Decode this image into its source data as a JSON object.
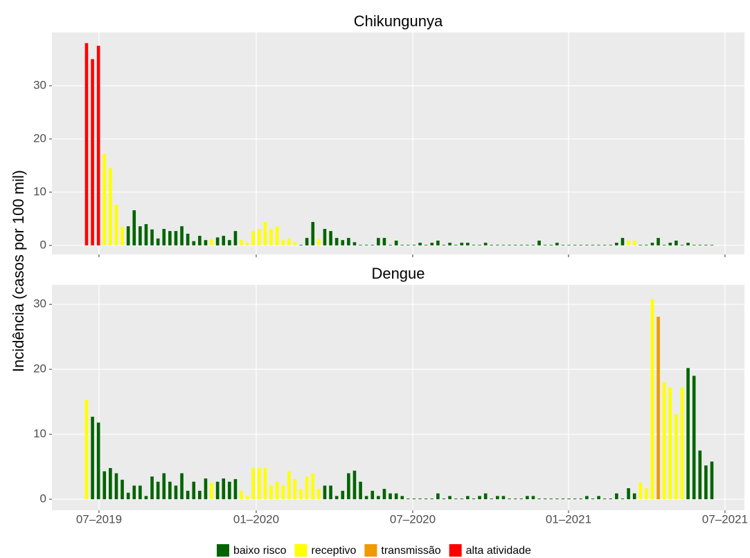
{
  "chart_data": [
    {
      "type": "bar",
      "title": "Chikungunya",
      "ylabel": "Incidência (casos por 100 mil)",
      "categories": [
        null,
        null,
        null,
        null,
        null,
        null,
        null,
        null,
        null,
        null,
        null,
        null,
        null,
        null,
        null,
        null,
        null,
        null,
        null,
        null,
        null,
        null,
        null,
        null,
        null,
        null,
        null,
        null,
        null,
        null,
        null,
        null,
        null,
        null,
        null,
        null,
        null,
        null,
        null,
        null,
        null,
        null,
        null,
        null,
        null,
        null,
        null,
        null,
        null,
        null,
        null,
        null,
        null,
        null,
        null,
        null,
        null,
        null,
        null,
        null,
        null,
        null,
        null,
        null,
        null,
        null,
        null,
        null,
        null,
        null,
        null,
        null,
        null,
        null,
        null,
        null,
        null,
        null,
        null,
        null,
        null,
        null,
        null,
        null,
        null,
        null,
        null,
        null,
        null,
        null,
        null,
        null,
        null,
        null,
        null,
        null,
        null,
        null,
        null,
        null,
        null,
        null,
        null,
        null,
        null,
        null
      ],
      "values": [
        38,
        35,
        37.5,
        17.2,
        14.5,
        7.6,
        3.5,
        3.6,
        6.6,
        3.6,
        4,
        3,
        1.3,
        3.1,
        2.7,
        2.7,
        3.6,
        2.2,
        0.8,
        1.8,
        1,
        1.2,
        1.5,
        1.8,
        1,
        2.7,
        1,
        0.5,
        2.7,
        3.1,
        4.4,
        3.1,
        3.6,
        1,
        1.3,
        0.6,
        0.1,
        1.4,
        4.4,
        1.2,
        3.1,
        2.7,
        1.4,
        1,
        1.4,
        0.6,
        0.1,
        0.1,
        0.1,
        1.4,
        1.4,
        0.1,
        0.9,
        0.1,
        0.1,
        0.1,
        0.5,
        0.1,
        0.5,
        0.9,
        0.1,
        0.5,
        0.1,
        0.5,
        0.5,
        0.1,
        0.1,
        0.5,
        0.1,
        0.1,
        0.1,
        0.1,
        0.1,
        0.1,
        0.1,
        0.1,
        0.9,
        0.1,
        0.1,
        0.5,
        0.1,
        0.1,
        0.1,
        0.1,
        0.1,
        0.1,
        0.1,
        0.1,
        0.1,
        0.5,
        1.4,
        0.9,
        0.9,
        0.1,
        0.1,
        0.5,
        1.4,
        0.1,
        0.5,
        0.9,
        0.1,
        0.5,
        0.1,
        0.1,
        0.1,
        0.1
      ],
      "colors": [
        "#ff0000",
        "#ff0000",
        "#ff0000",
        "#ffff00",
        "#ffff00",
        "#ffff00",
        "#ffff00",
        "#006400",
        "#006400",
        "#006400",
        "#006400",
        "#006400",
        "#006400",
        "#006400",
        "#006400",
        "#006400",
        "#006400",
        "#006400",
        "#006400",
        "#006400",
        "#006400",
        "#ffff00",
        "#006400",
        "#006400",
        "#006400",
        "#006400",
        "#ffff00",
        "#ffff00",
        "#ffff00",
        "#ffff00",
        "#ffff00",
        "#ffff00",
        "#ffff00",
        "#ffff00",
        "#ffff00",
        "#ffff00",
        "#006400",
        "#006400",
        "#006400",
        "#ffff00",
        "#006400",
        "#006400",
        "#006400",
        "#006400",
        "#006400",
        "#006400",
        "#006400",
        "#006400",
        "#006400",
        "#006400",
        "#006400",
        "#006400",
        "#006400",
        "#006400",
        "#006400",
        "#006400",
        "#006400",
        "#006400",
        "#006400",
        "#006400",
        "#006400",
        "#006400",
        "#006400",
        "#006400",
        "#006400",
        "#006400",
        "#006400",
        "#006400",
        "#006400",
        "#006400",
        "#006400",
        "#006400",
        "#006400",
        "#006400",
        "#006400",
        "#006400",
        "#006400",
        "#006400",
        "#006400",
        "#006400",
        "#006400",
        "#006400",
        "#006400",
        "#006400",
        "#006400",
        "#006400",
        "#006400",
        "#006400",
        "#006400",
        "#006400",
        "#006400",
        "#ffff00",
        "#ffff00",
        "#006400",
        "#006400",
        "#006400",
        "#006400",
        "#006400",
        "#006400",
        "#006400",
        "#006400",
        "#006400",
        "#006400",
        "#006400",
        "#006400",
        "#006400"
      ],
      "ylim": [
        -1.7,
        40
      ],
      "yticks": [
        0,
        10,
        20,
        30
      ],
      "xlim": [
        -5.81,
        110.47
      ],
      "grid": true
    },
    {
      "type": "bar",
      "title": "Dengue",
      "categories": [
        null,
        null,
        null,
        null,
        null,
        null,
        null,
        null,
        null,
        null,
        null,
        null,
        null,
        null,
        null,
        null,
        null,
        null,
        null,
        null,
        null,
        null,
        null,
        null,
        null,
        null,
        null,
        null,
        null,
        null,
        null,
        null,
        null,
        null,
        null,
        null,
        null,
        null,
        null,
        null,
        null,
        null,
        null,
        null,
        null,
        null,
        null,
        null,
        null,
        null,
        null,
        null,
        null,
        null,
        null,
        null,
        null,
        null,
        null,
        null,
        null,
        null,
        null,
        null,
        null,
        null,
        null,
        null,
        null,
        null,
        null,
        null,
        null,
        null,
        null,
        null,
        null,
        null,
        null,
        null,
        null,
        null,
        null,
        null,
        null,
        null,
        null,
        null,
        null,
        null,
        null,
        null,
        null,
        null,
        null,
        null,
        null,
        null,
        null,
        null,
        null,
        null,
        null,
        null,
        null,
        null
      ],
      "values": [
        15.3,
        12.7,
        11.8,
        4.3,
        4.8,
        4,
        3,
        1,
        2.1,
        2.1,
        0.5,
        3.5,
        2.7,
        4,
        2.7,
        2.1,
        4,
        1.3,
        2.7,
        1.3,
        3.2,
        2.5,
        2.7,
        3.2,
        2.7,
        3.1,
        1.3,
        0.5,
        4.8,
        4.8,
        4.8,
        2.1,
        2.7,
        2.1,
        4.3,
        3.1,
        1.6,
        3.5,
        4,
        1.6,
        2.1,
        2.1,
        0.5,
        1.3,
        4,
        4.4,
        2.7,
        0.5,
        1.3,
        0.5,
        1.6,
        0.9,
        0.9,
        0.5,
        0.1,
        0.1,
        0.1,
        0.1,
        0.1,
        0.9,
        0.1,
        0.5,
        0.1,
        0.1,
        0.5,
        0.1,
        0.5,
        0.9,
        0.1,
        0.5,
        0.5,
        0.1,
        0.1,
        0.1,
        0.5,
        0.5,
        0.1,
        0.1,
        0.1,
        0.1,
        0.1,
        0.1,
        0.1,
        0.1,
        0.5,
        0.1,
        0.5,
        0.1,
        0.1,
        0.9,
        0.1,
        1.7,
        0.9,
        2.6,
        1.7,
        30.8,
        28.1,
        18,
        17.2,
        13.1,
        17.2,
        20.2,
        19,
        7.5,
        5.2,
        5.8
      ],
      "colors": [
        "#ffff00",
        "#006400",
        "#006400",
        "#006400",
        "#006400",
        "#006400",
        "#006400",
        "#006400",
        "#006400",
        "#006400",
        "#006400",
        "#006400",
        "#006400",
        "#006400",
        "#006400",
        "#006400",
        "#006400",
        "#006400",
        "#006400",
        "#006400",
        "#006400",
        "#ffff00",
        "#006400",
        "#006400",
        "#006400",
        "#006400",
        "#ffff00",
        "#ffff00",
        "#ffff00",
        "#ffff00",
        "#ffff00",
        "#ffff00",
        "#ffff00",
        "#ffff00",
        "#ffff00",
        "#ffff00",
        "#ffff00",
        "#ffff00",
        "#ffff00",
        "#ffff00",
        "#006400",
        "#006400",
        "#006400",
        "#006400",
        "#006400",
        "#006400",
        "#006400",
        "#006400",
        "#006400",
        "#006400",
        "#006400",
        "#006400",
        "#006400",
        "#006400",
        "#006400",
        "#006400",
        "#006400",
        "#006400",
        "#006400",
        "#006400",
        "#006400",
        "#006400",
        "#006400",
        "#006400",
        "#006400",
        "#006400",
        "#006400",
        "#006400",
        "#006400",
        "#006400",
        "#006400",
        "#006400",
        "#006400",
        "#006400",
        "#006400",
        "#006400",
        "#006400",
        "#006400",
        "#006400",
        "#006400",
        "#006400",
        "#006400",
        "#006400",
        "#006400",
        "#006400",
        "#006400",
        "#006400",
        "#006400",
        "#006400",
        "#006400",
        "#006400",
        "#006400",
        "#006400",
        "#ffff00",
        "#ffff00",
        "#ffff00",
        "#ee9a00",
        "#ffff00",
        "#ffff00",
        "#ffff00",
        "#ffff00",
        "#006400",
        "#006400",
        "#006400",
        "#006400",
        "#006400"
      ],
      "ylim": [
        -1.7,
        33
      ],
      "yticks": [
        0,
        10,
        20,
        30
      ],
      "xlim": [
        -5.81,
        110.47
      ],
      "xticks": [
        {
          "value": 2.09,
          "label": "07–2019"
        },
        {
          "value": 28.49,
          "label": "01–2020"
        },
        {
          "value": 54.77,
          "label": "07–2020"
        },
        {
          "value": 80.93,
          "label": "01–2021"
        },
        {
          "value": 107.2,
          "label": "07–2021"
        }
      ],
      "grid": true,
      "legend": [
        {
          "name": "baixo risco",
          "color": "#006400"
        },
        {
          "name": "receptivo",
          "color": "#ffff00"
        },
        {
          "name": "transmissão",
          "color": "#ee9a00"
        },
        {
          "name": "alta atividade",
          "color": "#ff0000"
        }
      ]
    }
  ]
}
